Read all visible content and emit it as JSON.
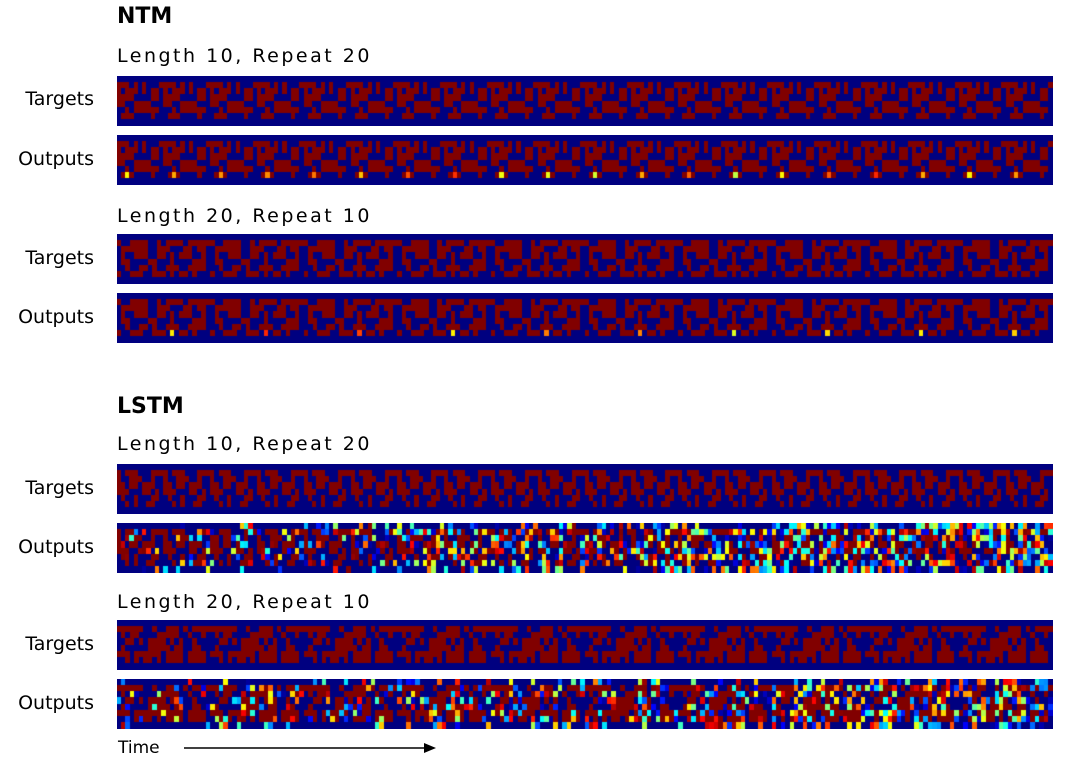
{
  "sections": [
    {
      "title": "NTM",
      "conditions": [
        {
          "subtitle": "Length 10, Repeat 20",
          "rows": [
            {
              "label": "Targets"
            },
            {
              "label": "Outputs"
            }
          ]
        },
        {
          "subtitle": "Length 20, Repeat 10",
          "rows": [
            {
              "label": "Targets"
            },
            {
              "label": "Outputs"
            }
          ]
        }
      ]
    },
    {
      "title": "LSTM",
      "conditions": [
        {
          "subtitle": "Length 10, Repeat 20",
          "rows": [
            {
              "label": "Targets"
            },
            {
              "label": "Outputs"
            }
          ]
        },
        {
          "subtitle": "Length 20, Repeat 10",
          "rows": [
            {
              "label": "Targets"
            },
            {
              "label": "Outputs"
            }
          ]
        }
      ]
    }
  ],
  "time_label": "Time",
  "colormap": {
    "low": "#00008f",
    "high": "#800000",
    "name": "jet"
  }
}
